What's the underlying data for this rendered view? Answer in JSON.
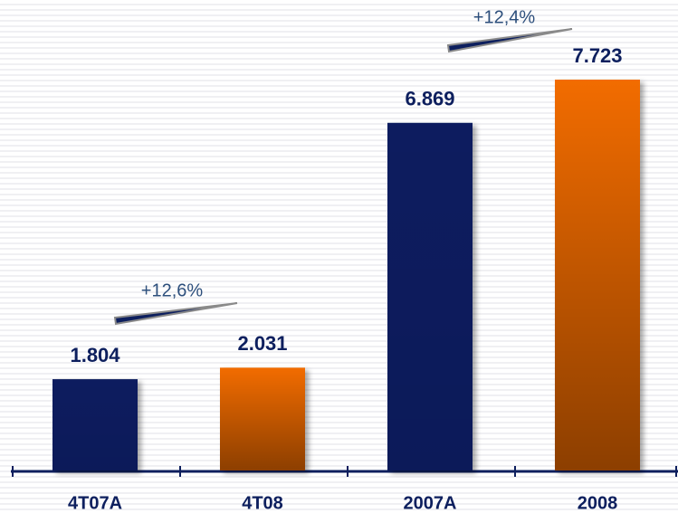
{
  "chart_data": {
    "type": "bar",
    "categories": [
      "4T07A",
      "4T08",
      "2007A",
      "2008"
    ],
    "values": [
      1804,
      2031,
      6869,
      7723
    ],
    "value_labels": [
      "1.804",
      "2.031",
      "6.869",
      "7.723"
    ],
    "colors": [
      "#0d1f5e",
      "#f26c00",
      "#0d1f5e",
      "#f26c00"
    ],
    "annotations": [
      "+12,6%",
      "+12,4%"
    ]
  }
}
